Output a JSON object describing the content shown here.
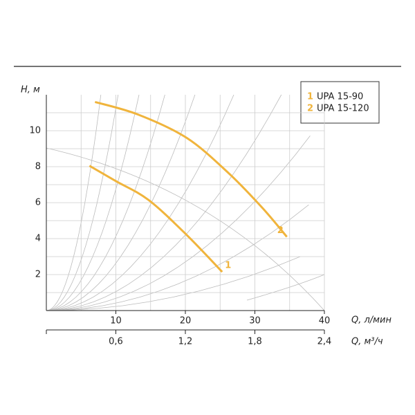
{
  "chart_data": {
    "type": "line",
    "y_label": "H, м",
    "x_label": "Q, л/мин",
    "x2_label": "Q, м³/ч",
    "xlim": [
      0,
      40
    ],
    "xticks": [
      10,
      20,
      30,
      40
    ],
    "xminor": [
      5,
      15,
      25,
      35
    ],
    "ylim": [
      0,
      12
    ],
    "yticks": [
      2,
      4,
      6,
      8,
      10
    ],
    "yminor": [
      1,
      3,
      5,
      7,
      9,
      11
    ],
    "x2lim": [
      0,
      2.4
    ],
    "x2ticks": [
      {
        "value": 0.6,
        "label": "0,6"
      },
      {
        "value": 1.2,
        "label": "1,2"
      },
      {
        "value": 1.8,
        "label": "1,8"
      },
      {
        "value": 2.4,
        "label": "2,4"
      }
    ],
    "grid": true,
    "legend": "top-right",
    "series": [
      {
        "name": "UPA 15-90",
        "marker": "1",
        "color": "#f0b43c",
        "x": [
          6.2,
          10,
          14.7,
          20.2,
          25.3
        ],
        "values": [
          8.05,
          7.2,
          6.15,
          4.2,
          2.15
        ]
      },
      {
        "name": "UPA 15-120",
        "marker": "2",
        "color": "#f0b43c",
        "x": [
          7,
          13.2,
          20.2,
          26.2,
          31.1,
          34.6
        ],
        "values": [
          11.6,
          10.9,
          9.6,
          7.65,
          5.7,
          4.1
        ]
      }
    ]
  }
}
